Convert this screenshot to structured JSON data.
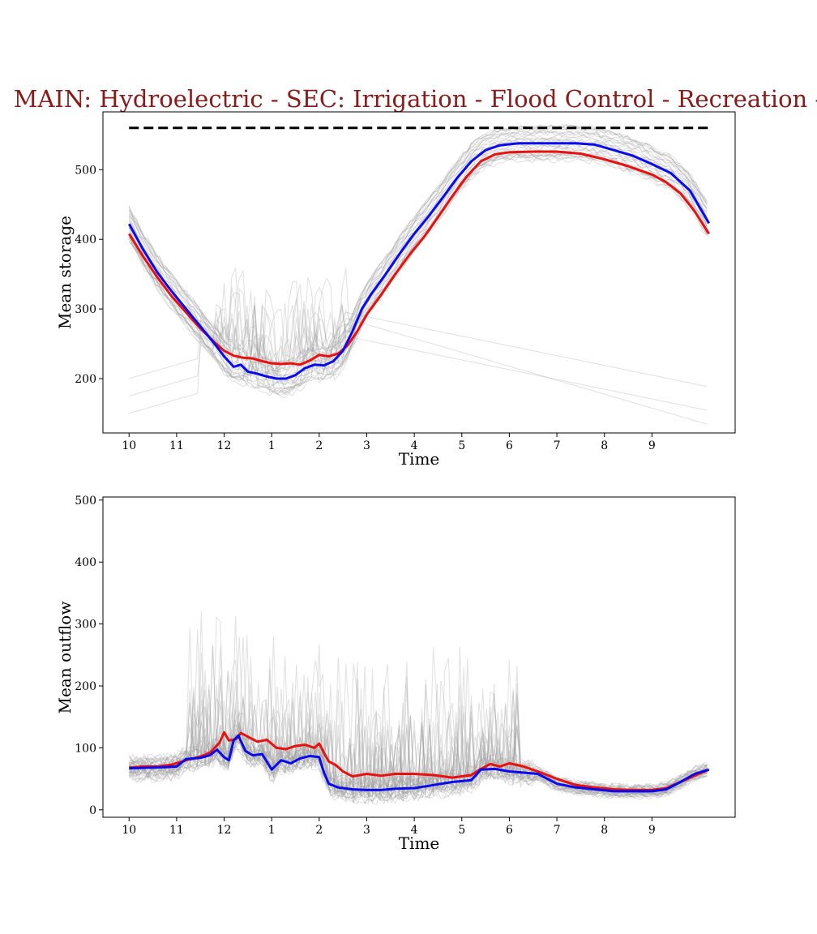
{
  "title": "MAIN: Hydroelectric - SEC: Irrigation - Flood Control - Recreation -",
  "colors": {
    "title": "#8b1a1a",
    "red_series": "#e8110f",
    "blue_series": "#0a0aee",
    "ensemble": "#9a9a9a",
    "reference": "#000000"
  },
  "chart_data": [
    {
      "type": "line",
      "ylabel": "Mean storage",
      "xlabel": "Time",
      "x_ticks": [
        "10",
        "11",
        "12",
        "1",
        "2",
        "3",
        "4",
        "5",
        "6",
        "7",
        "8",
        "9"
      ],
      "xlim": [
        -0.55,
        12.75
      ],
      "ylim": [
        122,
        583
      ],
      "y_ticks": [
        200,
        300,
        400,
        500
      ],
      "grid": false,
      "legend": "none",
      "reference_line": {
        "y": 560,
        "x_start": 0,
        "x_end": 12.2,
        "style": "dashed"
      },
      "series": [
        {
          "color": "red",
          "points": [
            [
              0,
              408
            ],
            [
              0.3,
              375
            ],
            [
              0.6,
              345
            ],
            [
              0.9,
              318
            ],
            [
              1.2,
              295
            ],
            [
              1.5,
              272
            ],
            [
              1.8,
              252
            ],
            [
              2.0,
              240
            ],
            [
              2.2,
              233
            ],
            [
              2.4,
              230
            ],
            [
              2.6,
              229
            ],
            [
              2.8,
              225
            ],
            [
              3.0,
              222
            ],
            [
              3.2,
              221
            ],
            [
              3.4,
              222
            ],
            [
              3.6,
              220
            ],
            [
              3.8,
              226
            ],
            [
              4.0,
              234
            ],
            [
              4.2,
              232
            ],
            [
              4.4,
              236
            ],
            [
              4.6,
              248
            ],
            [
              4.8,
              268
            ],
            [
              5.0,
              292
            ],
            [
              5.3,
              320
            ],
            [
              5.6,
              350
            ],
            [
              5.9,
              378
            ],
            [
              6.2,
              403
            ],
            [
              6.5,
              432
            ],
            [
              6.8,
              462
            ],
            [
              7.1,
              490
            ],
            [
              7.4,
              512
            ],
            [
              7.7,
              522
            ],
            [
              8.0,
              525
            ],
            [
              8.5,
              526
            ],
            [
              9.0,
              526
            ],
            [
              9.5,
              523
            ],
            [
              10.0,
              515
            ],
            [
              10.5,
              505
            ],
            [
              11.0,
              493
            ],
            [
              11.3,
              482
            ],
            [
              11.6,
              466
            ],
            [
              11.9,
              440
            ],
            [
              12.2,
              408
            ]
          ]
        },
        {
          "color": "blue",
          "points": [
            [
              0,
              422
            ],
            [
              0.3,
              385
            ],
            [
              0.6,
              352
            ],
            [
              0.9,
              325
            ],
            [
              1.2,
              300
            ],
            [
              1.5,
              275
            ],
            [
              1.8,
              250
            ],
            [
              2.0,
              232
            ],
            [
              2.2,
              217
            ],
            [
              2.35,
              220
            ],
            [
              2.5,
              210
            ],
            [
              2.7,
              207
            ],
            [
              2.9,
              203
            ],
            [
              3.1,
              200
            ],
            [
              3.3,
              200
            ],
            [
              3.5,
              205
            ],
            [
              3.7,
              215
            ],
            [
              3.9,
              220
            ],
            [
              4.1,
              219
            ],
            [
              4.3,
              225
            ],
            [
              4.5,
              240
            ],
            [
              4.7,
              268
            ],
            [
              4.9,
              300
            ],
            [
              5.1,
              322
            ],
            [
              5.4,
              350
            ],
            [
              5.7,
              380
            ],
            [
              6.0,
              408
            ],
            [
              6.3,
              433
            ],
            [
              6.6,
              460
            ],
            [
              6.9,
              488
            ],
            [
              7.2,
              512
            ],
            [
              7.5,
              528
            ],
            [
              7.8,
              535
            ],
            [
              8.2,
              538
            ],
            [
              8.8,
              538
            ],
            [
              9.4,
              538
            ],
            [
              9.8,
              536
            ],
            [
              10.2,
              528
            ],
            [
              10.6,
              520
            ],
            [
              11.0,
              508
            ],
            [
              11.4,
              495
            ],
            [
              11.8,
              470
            ],
            [
              12.2,
              423
            ]
          ]
        }
      ]
    },
    {
      "type": "line",
      "ylabel": "Mean outflow",
      "xlabel": "Time",
      "x_ticks": [
        "10",
        "11",
        "12",
        "1",
        "2",
        "3",
        "4",
        "5",
        "6",
        "7",
        "8",
        "9"
      ],
      "xlim": [
        -0.55,
        12.75
      ],
      "ylim": [
        -12,
        505
      ],
      "y_ticks": [
        0,
        100,
        200,
        300,
        400,
        500
      ],
      "grid": false,
      "legend": "none",
      "series": [
        {
          "color": "red",
          "points": [
            [
              0,
              68
            ],
            [
              0.3,
              70
            ],
            [
              0.6,
              70
            ],
            [
              0.9,
              73
            ],
            [
              1.2,
              80
            ],
            [
              1.5,
              86
            ],
            [
              1.7,
              92
            ],
            [
              1.9,
              108
            ],
            [
              2.0,
              125
            ],
            [
              2.1,
              112
            ],
            [
              2.25,
              114
            ],
            [
              2.35,
              124
            ],
            [
              2.5,
              118
            ],
            [
              2.7,
              110
            ],
            [
              2.9,
              113
            ],
            [
              3.1,
              100
            ],
            [
              3.3,
              98
            ],
            [
              3.5,
              103
            ],
            [
              3.7,
              105
            ],
            [
              3.9,
              100
            ],
            [
              4.0,
              107
            ],
            [
              4.1,
              92
            ],
            [
              4.2,
              78
            ],
            [
              4.35,
              72
            ],
            [
              4.5,
              62
            ],
            [
              4.7,
              54
            ],
            [
              5.0,
              58
            ],
            [
              5.3,
              55
            ],
            [
              5.6,
              58
            ],
            [
              6.0,
              58
            ],
            [
              6.4,
              56
            ],
            [
              6.8,
              52
            ],
            [
              7.2,
              56
            ],
            [
              7.4,
              66
            ],
            [
              7.6,
              74
            ],
            [
              7.8,
              70
            ],
            [
              8.0,
              75
            ],
            [
              8.3,
              70
            ],
            [
              8.6,
              62
            ],
            [
              9.0,
              50
            ],
            [
              9.4,
              40
            ],
            [
              9.8,
              36
            ],
            [
              10.2,
              33
            ],
            [
              10.6,
              32
            ],
            [
              11.0,
              32
            ],
            [
              11.3,
              35
            ],
            [
              11.6,
              45
            ],
            [
              11.9,
              55
            ],
            [
              12.2,
              65
            ]
          ]
        },
        {
          "color": "blue",
          "points": [
            [
              0,
              67
            ],
            [
              0.4,
              68
            ],
            [
              0.8,
              69
            ],
            [
              1.0,
              70
            ],
            [
              1.2,
              82
            ],
            [
              1.5,
              84
            ],
            [
              1.7,
              88
            ],
            [
              1.85,
              97
            ],
            [
              2.0,
              85
            ],
            [
              2.1,
              80
            ],
            [
              2.2,
              112
            ],
            [
              2.3,
              120
            ],
            [
              2.45,
              95
            ],
            [
              2.6,
              88
            ],
            [
              2.8,
              90
            ],
            [
              3.0,
              65
            ],
            [
              3.2,
              80
            ],
            [
              3.4,
              75
            ],
            [
              3.6,
              83
            ],
            [
              3.8,
              87
            ],
            [
              4.0,
              85
            ],
            [
              4.1,
              60
            ],
            [
              4.2,
              42
            ],
            [
              4.4,
              36
            ],
            [
              4.7,
              33
            ],
            [
              5.0,
              32
            ],
            [
              5.3,
              32
            ],
            [
              5.6,
              34
            ],
            [
              6.0,
              35
            ],
            [
              6.4,
              40
            ],
            [
              6.8,
              45
            ],
            [
              7.2,
              48
            ],
            [
              7.4,
              65
            ],
            [
              7.7,
              66
            ],
            [
              8.0,
              62
            ],
            [
              8.3,
              60
            ],
            [
              8.6,
              58
            ],
            [
              9.0,
              42
            ],
            [
              9.4,
              36
            ],
            [
              9.8,
              33
            ],
            [
              10.2,
              30
            ],
            [
              10.6,
              30
            ],
            [
              11.0,
              30
            ],
            [
              11.3,
              33
            ],
            [
              11.6,
              45
            ],
            [
              11.9,
              58
            ],
            [
              12.2,
              65
            ]
          ]
        }
      ]
    }
  ]
}
